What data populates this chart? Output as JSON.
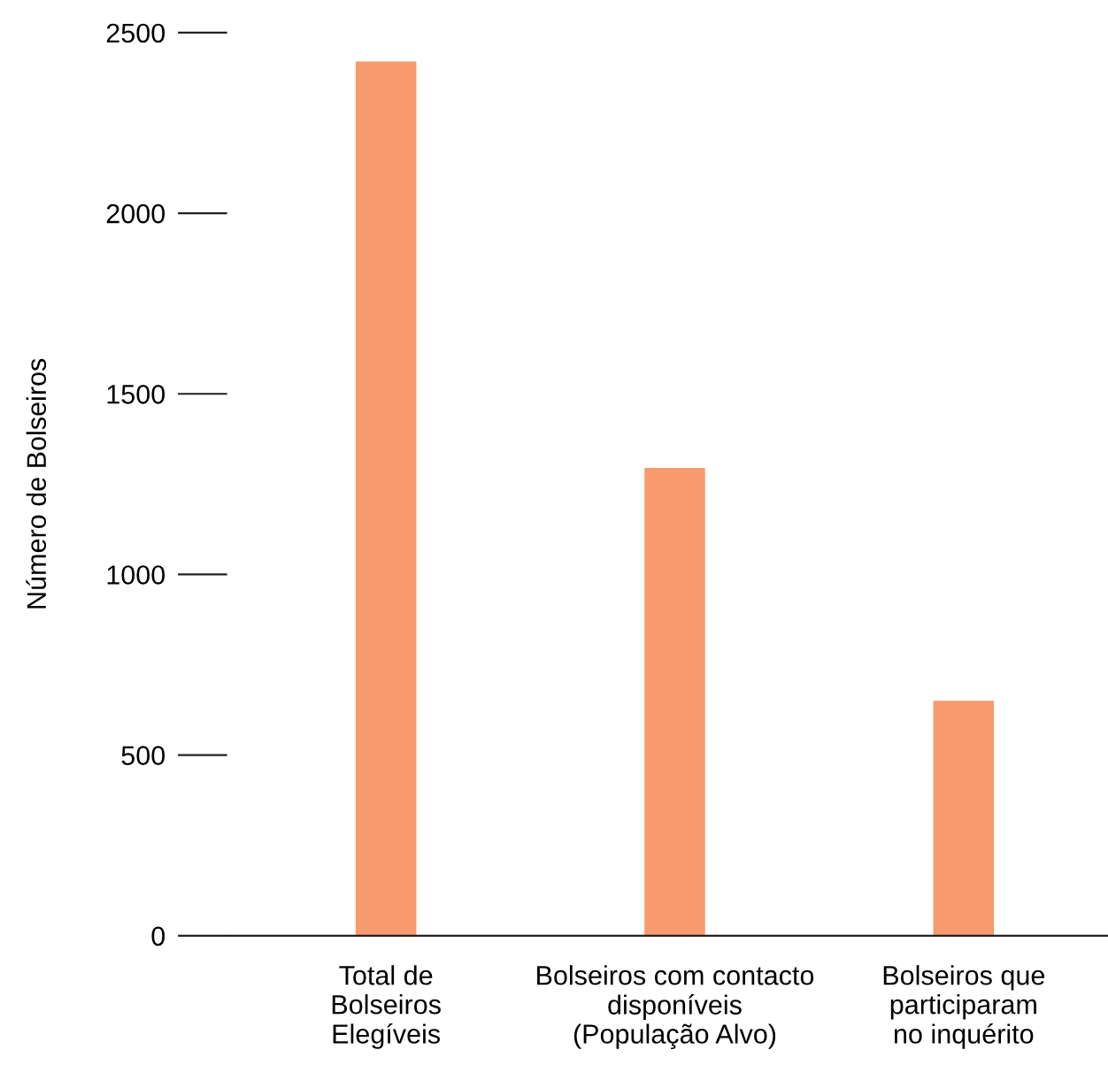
{
  "chart_data": {
    "type": "bar",
    "ylabel": "Número de Bolseiros",
    "categories": [
      "Total de\nBolseiros\nElegíveis",
      "Bolseiros com contacto\ndisponíveis\n(População Alvo)",
      "Bolseiros que\nparticiparam\nno inquérito"
    ],
    "values": [
      2420,
      1295,
      650
    ],
    "color": "#f79a6e",
    "ylim": [
      0,
      2500
    ],
    "yticks": [
      0,
      500,
      1000,
      1500,
      2000,
      2500
    ],
    "grid": false
  }
}
